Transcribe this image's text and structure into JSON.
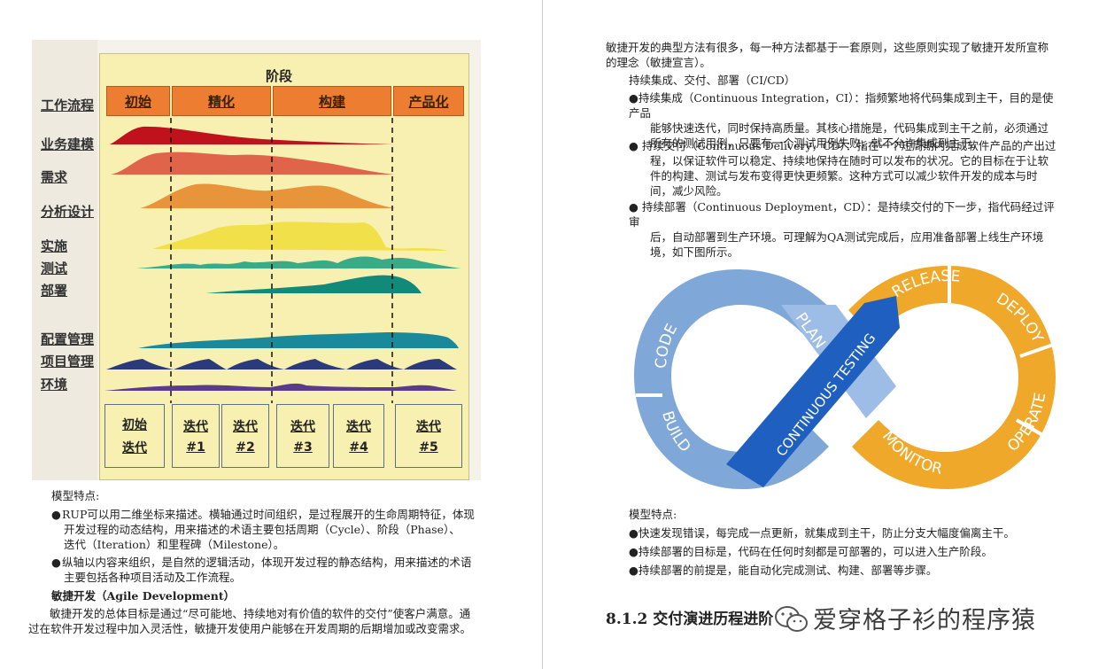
{
  "left": {
    "diagram": {
      "stage_title": "阶段",
      "phases": [
        "初始",
        "精化",
        "构建",
        "产品化"
      ],
      "rows": [
        "工作流程",
        "业务建模",
        "需求",
        "分析设计",
        "实施",
        "测试",
        "部署",
        "配置管理",
        "项目管理",
        "环境"
      ],
      "iterations": [
        {
          "top": "初始",
          "bottom": "迭代"
        },
        {
          "top": "迭代",
          "bottom": "#1"
        },
        {
          "top": "迭代",
          "bottom": "#2"
        },
        {
          "top": "迭代",
          "bottom": "#3"
        },
        {
          "top": "迭代",
          "bottom": "#4"
        },
        {
          "top": "迭代",
          "bottom": "#5"
        }
      ]
    },
    "model_features_label": "模型特点:",
    "bullet1_line1": "RUP可以用二维坐标来描述。横轴通过时间组织，是过程展开的生命周期特征，体现",
    "bullet1_line2": "开发过程的动态结构，用来描述的术语主要包括周期（Cycle）、阶段（Phase）、",
    "bullet1_line3": "迭代（Iteration）和里程碑（Milestone）。",
    "bullet2_line1": "纵轴以内容来组织，是自然的逻辑活动，体现开发过程的静态结构，用来描述的术语",
    "bullet2_line2": "主要包括各种项目活动及工作流程。",
    "agile_heading": "敏捷开发（Agile Development）",
    "agile_p_line1": "敏捷开发的总体目标是通过“尽可能地、持续地对有价值的软件的交付”使客户满意。通",
    "agile_p_line2": "过在软件开发过程中加入灵活性，敏捷开发使用户能够在开发周期的后期增加或改变需求。"
  },
  "right": {
    "intro_line1": "敏捷开发的典型方法有很多，每一种方法都基于一套原则，这些原则实现了敏捷开发所宣称",
    "intro_line2": "的理念（敏捷宣言）。",
    "cicd_heading": "持续集成、交付、部署（CI/CD）",
    "ci_line1": "持续集成（Continuous Integration，CI）：指频繁地将代码集成到主干，目的是使产品",
    "ci_line2": "能够快速迭代，同时保持高质量。其核心措施是，代码集成到主干之前，必须通过",
    "ci_line3": "所有的测试用例，只要有一个测试用例失败，就不允许集成到主干。",
    "cd_line1": "持续交付（Continuous Delivery，CD）：指在一个短周期内完成软件产品的产出过",
    "cd_line2": "程，以保证软件可以稳定、持续地保持在随时可以发布的状况。它的目标在于让软",
    "cd_line3": "件的构建、测试与发布变得更快更频繁。这种方式可以减少软件开发的成本与时",
    "cd_line4": "间，减少风险。",
    "cdp_line1": "持续部署（Continuous Deployment，CD）：是持续交付的下一步，指代码经过评审",
    "cdp_line2": "后，自动部署到生产环境。可理解为QA测试完成后，应用准备部署上线生产环境",
    "cdp_line3": "境，如下图所示。",
    "loop_labels": {
      "code": "CODE",
      "plan": "PLAN",
      "build": "BUILD",
      "testing": "CONTINUOUS TESTING",
      "release": "RELEASE",
      "deploy": "DEPLOY",
      "operate": "OPERATE",
      "monitor": "MONITOR"
    },
    "model_features_label": "模型特点:",
    "f1": "快速发现错误，每完成一点更新，就集成到主干，防止分支大幅度偏离主干。",
    "f2": "持续部署的目标是，代码在任何时刻都是可部署的，可以进入生产阶段。",
    "f3": "持续部署的前提是，能自动化完成测试、构建、部署等步骤。",
    "section_heading": "8.1.2 交付演进历程进阶",
    "watermark": "爱穿格子衫的程序猿"
  },
  "colors": {
    "phase_orange": "#ed7d31",
    "diagram_bg": "#f7f0b0",
    "loop_blue": "#7fa8d8",
    "loop_dark_blue": "#1f5fbf",
    "loop_orange": "#f0a82a"
  }
}
